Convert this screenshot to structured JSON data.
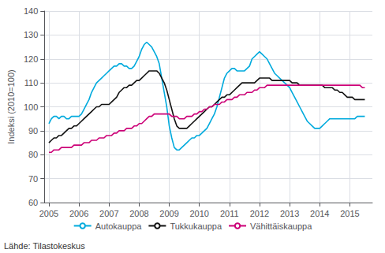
{
  "chart_data": {
    "type": "line",
    "ylabel": "Indeksi (2010=100)",
    "annotation": "Lähde: Tilastokeskus",
    "xlim": [
      2004.85,
      2015.75
    ],
    "xticks": [
      2005,
      2006,
      2007,
      2008,
      2009,
      2010,
      2011,
      2012,
      2013,
      2014,
      2015
    ],
    "ylim": [
      60,
      140
    ],
    "yticks": [
      60,
      70,
      80,
      90,
      100,
      110,
      120,
      130,
      140
    ],
    "grid": true,
    "legend": "bottom",
    "x": [
      2005,
      2005.083333,
      2005.166667,
      2005.25,
      2005.333333,
      2005.416667,
      2005.5,
      2005.583333,
      2005.666667,
      2005.75,
      2005.833333,
      2005.916667,
      2006,
      2006.083333,
      2006.166667,
      2006.25,
      2006.333333,
      2006.416667,
      2006.5,
      2006.583333,
      2006.666667,
      2006.75,
      2006.833333,
      2006.916667,
      2007,
      2007.083333,
      2007.166667,
      2007.25,
      2007.333333,
      2007.416667,
      2007.5,
      2007.583333,
      2007.666667,
      2007.75,
      2007.833333,
      2007.916667,
      2008,
      2008.083333,
      2008.166667,
      2008.25,
      2008.333333,
      2008.416667,
      2008.5,
      2008.583333,
      2008.666667,
      2008.75,
      2008.833333,
      2008.916667,
      2009,
      2009.083333,
      2009.166667,
      2009.25,
      2009.333333,
      2009.416667,
      2009.5,
      2009.583333,
      2009.666667,
      2009.75,
      2009.833333,
      2009.916667,
      2010,
      2010.083333,
      2010.166667,
      2010.25,
      2010.333333,
      2010.416667,
      2010.5,
      2010.583333,
      2010.666667,
      2010.75,
      2010.833333,
      2010.916667,
      2011,
      2011.083333,
      2011.166667,
      2011.25,
      2011.333333,
      2011.416667,
      2011.5,
      2011.583333,
      2011.666667,
      2011.75,
      2011.833333,
      2011.916667,
      2012,
      2012.083333,
      2012.166667,
      2012.25,
      2012.333333,
      2012.416667,
      2012.5,
      2012.583333,
      2012.666667,
      2012.75,
      2012.833333,
      2012.916667,
      2013,
      2013.083333,
      2013.166667,
      2013.25,
      2013.333333,
      2013.416667,
      2013.5,
      2013.583333,
      2013.666667,
      2013.75,
      2013.833333,
      2013.916667,
      2014,
      2014.083333,
      2014.166667,
      2014.25,
      2014.333333,
      2014.416667,
      2014.5,
      2014.583333,
      2014.666667,
      2014.75,
      2014.833333,
      2014.916667,
      2015,
      2015.083333,
      2015.166667,
      2015.25,
      2015.333333,
      2015.416667,
      2015.5
    ],
    "series": [
      {
        "name": "Autokauppa",
        "color": "#00AADD",
        "values": [
          93,
          95,
          96,
          96,
          95,
          96,
          96,
          95,
          95,
          96,
          96,
          96,
          96,
          97,
          99,
          101,
          103,
          106,
          108,
          110,
          111,
          112,
          113,
          114,
          115,
          116,
          117,
          117,
          118,
          118,
          117,
          117,
          116,
          116,
          117,
          119,
          121,
          124,
          126,
          127,
          126,
          125,
          123,
          121,
          118,
          112,
          106,
          100,
          92,
          87,
          83,
          82,
          82,
          83,
          84,
          85,
          86,
          87,
          87,
          88,
          88,
          89,
          90,
          91,
          93,
          95,
          97,
          100,
          104,
          108,
          112,
          114,
          115,
          116,
          116,
          115,
          115,
          115,
          115,
          116,
          117,
          120,
          121,
          122,
          123,
          122,
          121,
          120,
          118,
          116,
          114,
          113,
          112,
          111,
          110,
          109,
          108,
          106,
          104,
          102,
          100,
          98,
          96,
          94,
          93,
          92,
          91,
          91,
          91,
          92,
          93,
          94,
          95,
          95,
          95,
          95,
          95,
          95,
          95,
          95,
          95,
          95,
          95,
          96,
          96,
          96,
          96
        ]
      },
      {
        "name": "Tukkukauppa",
        "color": "#111111",
        "values": [
          85,
          86,
          87,
          87,
          88,
          88,
          89,
          90,
          91,
          91,
          92,
          92,
          93,
          94,
          95,
          96,
          97,
          98,
          99,
          100,
          100,
          101,
          101,
          101,
          101,
          102,
          103,
          104,
          106,
          107,
          108,
          108,
          109,
          109,
          110,
          111,
          111,
          112,
          113,
          114,
          115,
          115,
          115,
          115,
          114,
          112,
          110,
          107,
          103,
          99,
          95,
          92,
          91,
          91,
          91,
          91,
          92,
          93,
          94,
          95,
          96,
          97,
          98,
          99,
          100,
          100,
          101,
          102,
          103,
          104,
          104,
          105,
          105,
          106,
          107,
          108,
          109,
          110,
          110,
          110,
          110,
          110,
          110,
          111,
          112,
          112,
          112,
          112,
          112,
          111,
          111,
          111,
          111,
          111,
          111,
          111,
          111,
          110,
          110,
          110,
          109,
          109,
          109,
          109,
          109,
          109,
          109,
          109,
          109,
          109,
          108,
          108,
          108,
          108,
          107,
          107,
          106,
          106,
          105,
          104,
          104,
          104,
          103,
          103,
          103,
          103,
          103
        ]
      },
      {
        "name": "Vähittäiskauppa",
        "color": "#CC0077",
        "values": [
          81,
          81,
          82,
          82,
          82,
          83,
          83,
          83,
          83,
          83,
          84,
          84,
          84,
          84,
          85,
          85,
          85,
          86,
          86,
          86,
          87,
          87,
          87,
          88,
          88,
          88,
          89,
          89,
          90,
          90,
          90,
          91,
          91,
          91,
          92,
          92,
          93,
          93,
          94,
          95,
          96,
          96,
          97,
          97,
          97,
          97,
          97,
          97,
          97,
          96,
          96,
          96,
          95,
          95,
          95,
          96,
          96,
          96,
          97,
          97,
          98,
          98,
          99,
          99,
          100,
          100,
          101,
          101,
          101,
          102,
          102,
          103,
          103,
          103,
          104,
          104,
          105,
          105,
          105,
          106,
          106,
          106,
          107,
          107,
          108,
          108,
          108,
          109,
          109,
          109,
          109,
          109,
          109,
          109,
          109,
          109,
          109,
          109,
          109,
          109,
          109,
          109,
          109,
          109,
          109,
          109,
          109,
          109,
          109,
          109,
          109,
          109,
          109,
          109,
          109,
          109,
          109,
          109,
          109,
          109,
          109,
          109,
          109,
          109,
          109,
          108,
          108
        ]
      }
    ]
  }
}
